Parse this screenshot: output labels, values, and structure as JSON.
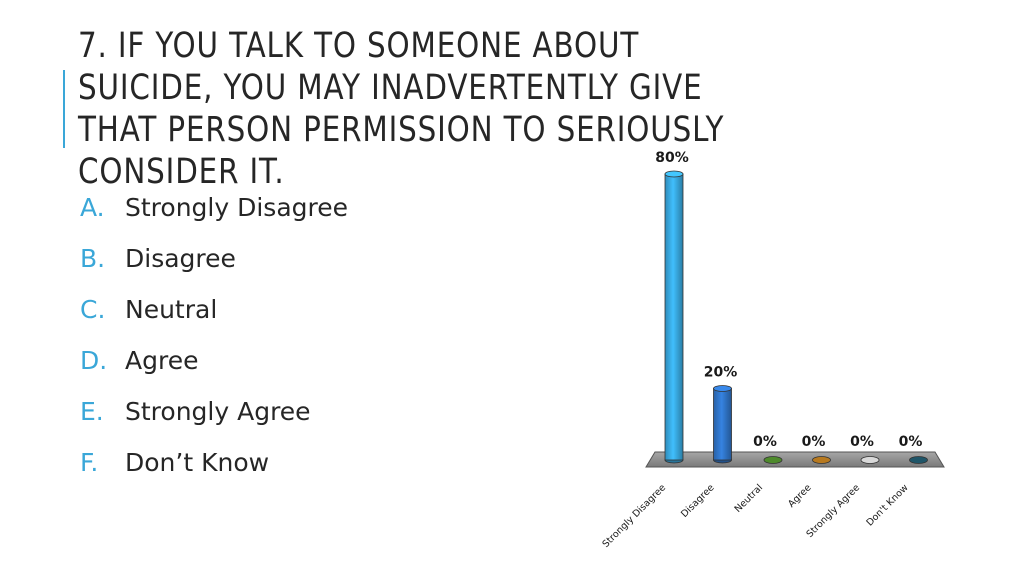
{
  "slide": {
    "title": "7. If you talk to someone about suicide, you may inadvertently give that person permission to seriously consider it."
  },
  "options": [
    {
      "letter": "A.",
      "text": "Strongly Disagree"
    },
    {
      "letter": "B.",
      "text": "Disagree"
    },
    {
      "letter": "C.",
      "text": "Neutral"
    },
    {
      "letter": "D.",
      "text": "Agree"
    },
    {
      "letter": "E.",
      "text": "Strongly Agree"
    },
    {
      "letter": "F.",
      "text": "Don’t Know"
    }
  ],
  "colors": {
    "accent": "#3aa7d8",
    "text": "#262626",
    "floor": "#8c8c8c"
  },
  "chart_data": {
    "type": "bar",
    "title": "",
    "xlabel": "",
    "ylabel": "",
    "categories": [
      "Strongly Disagree",
      "Disagree",
      "Neutral",
      "Agree",
      "Strongly Agree",
      "Don't Know"
    ],
    "values": [
      80,
      20,
      0,
      0,
      0,
      0
    ],
    "value_labels": [
      "80%",
      "20%",
      "0%",
      "0%",
      "0%",
      "0%"
    ],
    "colors": [
      "#38a6dc",
      "#2f72c4",
      "#4e8a2c",
      "#b7791f",
      "#d9d9d9",
      "#1f5568"
    ],
    "ylim": [
      0,
      80
    ],
    "grid": false,
    "legend": "none",
    "style": "3d-cylinder"
  }
}
